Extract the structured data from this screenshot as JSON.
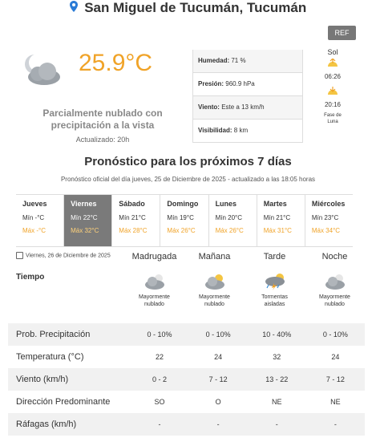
{
  "header": {
    "location": "San Miguel de Tucumán, Tucumán"
  },
  "ref_button": "REF",
  "current": {
    "temperature": "25.9°C",
    "condition": "Parcialmente nublado con precipitación a la vista",
    "updated": "Actualizado: 20h",
    "icon": "partly-cloudy-night-icon"
  },
  "stats": [
    {
      "label": "Humedad:",
      "value": "71 %"
    },
    {
      "label": "Presión:",
      "value": "960.9 hPa"
    },
    {
      "label": "Viento:",
      "value": "Este a 13 km/h"
    },
    {
      "label": "Visibilidad:",
      "value": "8 km"
    }
  ],
  "sun": {
    "title": "Sol",
    "sunrise": "06:26",
    "sunset": "20:16",
    "note_line1": "Fase de",
    "note_line2": "Luna"
  },
  "forecast": {
    "title": "Pronóstico para los próximos 7 días",
    "subtitle": "Pronóstico oficial del día jueves, 25 de Diciembre de 2025 - actualizado a las 18:05 horas",
    "days": [
      {
        "name": "Jueves",
        "min": "Mín -°C",
        "max": "Máx -°C",
        "active": false
      },
      {
        "name": "Viernes",
        "min": "Mín 22°C",
        "max": "Máx 32°C",
        "active": true
      },
      {
        "name": "Sábado",
        "min": "Mín 21°C",
        "max": "Máx 28°C",
        "active": false
      },
      {
        "name": "Domingo",
        "min": "Mín 19°C",
        "max": "Máx 26°C",
        "active": false
      },
      {
        "name": "Lunes",
        "min": "Mín 20°C",
        "max": "Máx 26°C",
        "active": false
      },
      {
        "name": "Martes",
        "min": "Mín 21°C",
        "max": "Máx 31°C",
        "active": false
      },
      {
        "name": "Miércoles",
        "min": "Mín 23°C",
        "max": "Máx 34°C",
        "active": false
      }
    ]
  },
  "detail": {
    "date": "Viernes, 26 de Diciembre de 2025",
    "periods": [
      "Madrugada",
      "Mañana",
      "Tarde",
      "Noche"
    ],
    "tiempo_label": "Tiempo",
    "weather": [
      {
        "line1": "Mayormente",
        "line2": "nublado",
        "icon": "cloudy-night-icon"
      },
      {
        "line1": "Mayormente",
        "line2": "nublado",
        "icon": "cloudy-day-icon"
      },
      {
        "line1": "Tormentas",
        "line2": "aisladas",
        "icon": "thunderstorm-icon"
      },
      {
        "line1": "Mayormente",
        "line2": "nublado",
        "icon": "cloudy-night-icon"
      }
    ],
    "rows": [
      {
        "label": "Prob. Precipitación",
        "values": [
          "0 - 10%",
          "0 - 10%",
          "10 - 40%",
          "0 - 10%"
        ]
      },
      {
        "label": "Temperatura (°C)",
        "values": [
          "22",
          "24",
          "32",
          "24"
        ]
      },
      {
        "label": "Viento (km/h)",
        "values": [
          "0 - 2",
          "7 - 12",
          "13 - 22",
          "7 - 12"
        ]
      },
      {
        "label": "Dirección Predominante",
        "values": [
          "SO",
          "O",
          "NE",
          "NE"
        ]
      },
      {
        "label": "Ráfagas (km/h)",
        "values": [
          "-",
          "-",
          "-",
          "-"
        ]
      }
    ]
  },
  "colors": {
    "accent": "#f0a328",
    "active_day": "#7a7a7a",
    "row_stripe": "#f1f1f1"
  }
}
